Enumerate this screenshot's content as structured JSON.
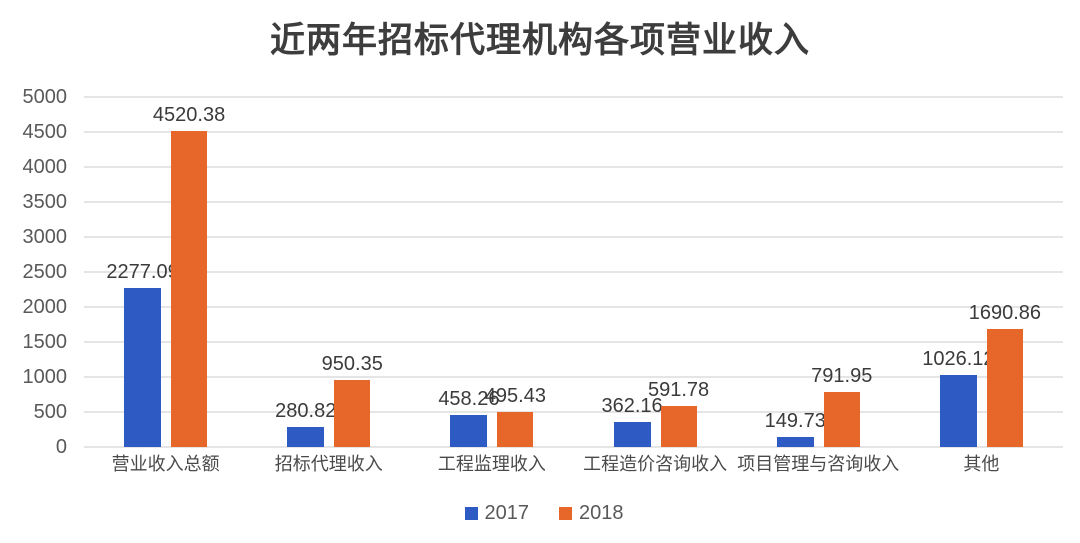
{
  "chart_data": {
    "type": "bar",
    "title": "近两年招标代理机构各项营业收入",
    "categories": [
      "营业收入总额",
      "招标代理收入",
      "工程监理收入",
      "工程造价咨询收入",
      "项目管理与咨询收入",
      "其他"
    ],
    "series": [
      {
        "name": "2017",
        "color": "#2e5bc3",
        "values": [
          2277.09,
          280.82,
          458.26,
          362.16,
          149.73,
          1026.12
        ],
        "labels": [
          "2277.09",
          "280.82",
          "458.26",
          "362.16",
          "149.73",
          "1026.12"
        ]
      },
      {
        "name": "2018",
        "color": "#e7672a",
        "values": [
          4520.38,
          950.35,
          495.43,
          591.78,
          791.95,
          1690.86
        ],
        "labels": [
          "4520.38",
          "950.35",
          "495.43",
          "591.78",
          "791.95",
          "1690.86"
        ]
      }
    ],
    "ylim": [
      0,
      5000
    ],
    "yticks": [
      0,
      500,
      1000,
      1500,
      2000,
      2500,
      3000,
      3500,
      4000,
      4500,
      5000
    ],
    "ytick_labels": [
      "0",
      "500",
      "1000",
      "1500",
      "2000",
      "2500",
      "3000",
      "3500",
      "4000",
      "4500",
      "5000"
    ],
    "grid": true,
    "gridline_color": "#e5e5e5",
    "legend_position": "bottom",
    "data_labels": true
  }
}
